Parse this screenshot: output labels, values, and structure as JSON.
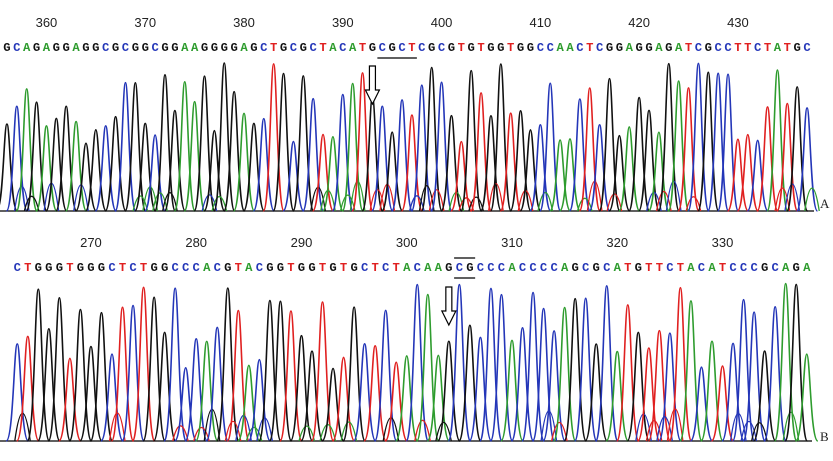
{
  "colors": {
    "A": "#2e9c2e",
    "C": "#2436b8",
    "G": "#111111",
    "T": "#e02020"
  },
  "chart_data": [
    {
      "type": "line",
      "panel_label": "A",
      "position_start": 356,
      "position_ticks": [
        360,
        370,
        380,
        390,
        400,
        410,
        420,
        430
      ],
      "sequence": "GCAGAGGAGGCGCGGCGGAAGGGGAGCTGCGCTACATGCGCTCGCGTGTGGTGGCCAACTCGGAGGAGATCGCCTTCTATGC",
      "marked_site": "CGCT",
      "arrow_position": 393
    },
    {
      "type": "line",
      "panel_label": "B",
      "position_start": 263,
      "position_ticks": [
        270,
        280,
        290,
        300,
        310,
        320,
        330
      ],
      "sequence": "CTGGGTGGGCTCTGGCCCACGTACGGTGGTGTGCTCTACAAGCGCCCACCCCAGCGCATGTTCTACATCCCGCAGA",
      "marked_site": "CG",
      "arrow_position": 304
    }
  ]
}
